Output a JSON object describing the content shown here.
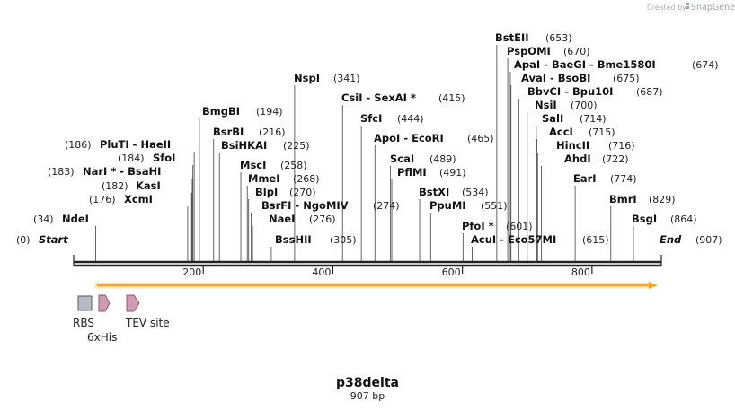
{
  "branding": {
    "created_by": "Created by",
    "product": "SnapGene"
  },
  "sequence": {
    "name": "p38delta",
    "length_label": "907 bp",
    "length": 907
  },
  "ends": {
    "start": {
      "pos": "(0)",
      "label": "Start"
    },
    "end": {
      "label": "End",
      "pos": "(907)"
    }
  },
  "ruler": {
    "ticks": [
      {
        "bp": 200,
        "label": "200"
      },
      {
        "bp": 400,
        "label": "400"
      },
      {
        "bp": 600,
        "label": "600"
      },
      {
        "bp": 800,
        "label": "800"
      }
    ]
  },
  "enzymes": [
    {
      "name": "NdeI",
      "pos": "(34)",
      "bp": 34
    },
    {
      "name": "XcmI",
      "pos": "(176)",
      "bp": 176
    },
    {
      "name": "KasI",
      "pos": "(182)",
      "bp": 182
    },
    {
      "name": "NarI * - BsaHI",
      "pos": "(183)",
      "bp": 183
    },
    {
      "name": "SfoI",
      "pos": "(184)",
      "bp": 184
    },
    {
      "name": "PluTI  - HaeII",
      "pos": "(186)",
      "bp": 186
    },
    {
      "name": "BmgBI",
      "pos": "(194)",
      "bp": 194
    },
    {
      "name": "BsrBI",
      "pos": "(216)",
      "bp": 216
    },
    {
      "name": "BsiHKAI",
      "pos": "(225)",
      "bp": 225
    },
    {
      "name": "MscI",
      "pos": "(258)",
      "bp": 258
    },
    {
      "name": "MmeI",
      "pos": "(268)",
      "bp": 268
    },
    {
      "name": "BlpI",
      "pos": "(270)",
      "bp": 270
    },
    {
      "name": "BsrFI  - NgoMIV",
      "pos": "(274)",
      "bp": 274
    },
    {
      "name": "NaeI",
      "pos": "(276)",
      "bp": 276
    },
    {
      "name": "BssHII",
      "pos": "(305)",
      "bp": 305
    },
    {
      "name": "NspI",
      "pos": "(341)",
      "bp": 341
    },
    {
      "name": "CsiI  - SexAI *",
      "pos": "(415)",
      "bp": 415
    },
    {
      "name": "SfcI",
      "pos": "(444)",
      "bp": 444
    },
    {
      "name": "ApoI  - EcoRI",
      "pos": "(465)",
      "bp": 465
    },
    {
      "name": "ScaI",
      "pos": "(489)",
      "bp": 489
    },
    {
      "name": "PflMI",
      "pos": "(491)",
      "bp": 491
    },
    {
      "name": "BstXI",
      "pos": "(534)",
      "bp": 534
    },
    {
      "name": "PpuMI",
      "pos": "(551)",
      "bp": 551
    },
    {
      "name": "PfoI *",
      "pos": "(601)",
      "bp": 601
    },
    {
      "name": "AcuI  - Eco57MI",
      "pos": "(615)",
      "bp": 615
    },
    {
      "name": "BstEII",
      "pos": "(653)",
      "bp": 653
    },
    {
      "name": "PspOMI",
      "pos": "(670)",
      "bp": 670
    },
    {
      "name": "ApaI  - BaeGI  - Bme1580I",
      "pos": "(674)",
      "bp": 674
    },
    {
      "name": "AvaI  - BsoBI",
      "pos": "(675)",
      "bp": 675
    },
    {
      "name": "BbvCI  - Bpu10I",
      "pos": "(687)",
      "bp": 687
    },
    {
      "name": "NsiI",
      "pos": "(700)",
      "bp": 700
    },
    {
      "name": "SalI",
      "pos": "(714)",
      "bp": 714
    },
    {
      "name": "AccI",
      "pos": "(715)",
      "bp": 715
    },
    {
      "name": "HincII",
      "pos": "(716)",
      "bp": 716
    },
    {
      "name": "AhdI",
      "pos": "(722)",
      "bp": 722
    },
    {
      "name": "EarI",
      "pos": "(774)",
      "bp": 774
    },
    {
      "name": "BmrI",
      "pos": "(829)",
      "bp": 829
    },
    {
      "name": "BsgI",
      "pos": "(864)",
      "bp": 864
    }
  ],
  "features": [
    {
      "name": "RBS",
      "type": "rbs"
    },
    {
      "name": "6xHis",
      "type": "tag"
    },
    {
      "name": "TEV site",
      "type": "site"
    }
  ],
  "orf": {
    "direction": "forward"
  },
  "colors": {
    "orf_fill": "#f5a623",
    "orf_halo": "#fbe6b9",
    "feature_pink": "#cf9bb5",
    "feature_pink_stroke": "#8a5a73",
    "rbs_fill": "#b7bcc4",
    "rbs_stroke": "#555b63",
    "backbone": "#222222"
  }
}
